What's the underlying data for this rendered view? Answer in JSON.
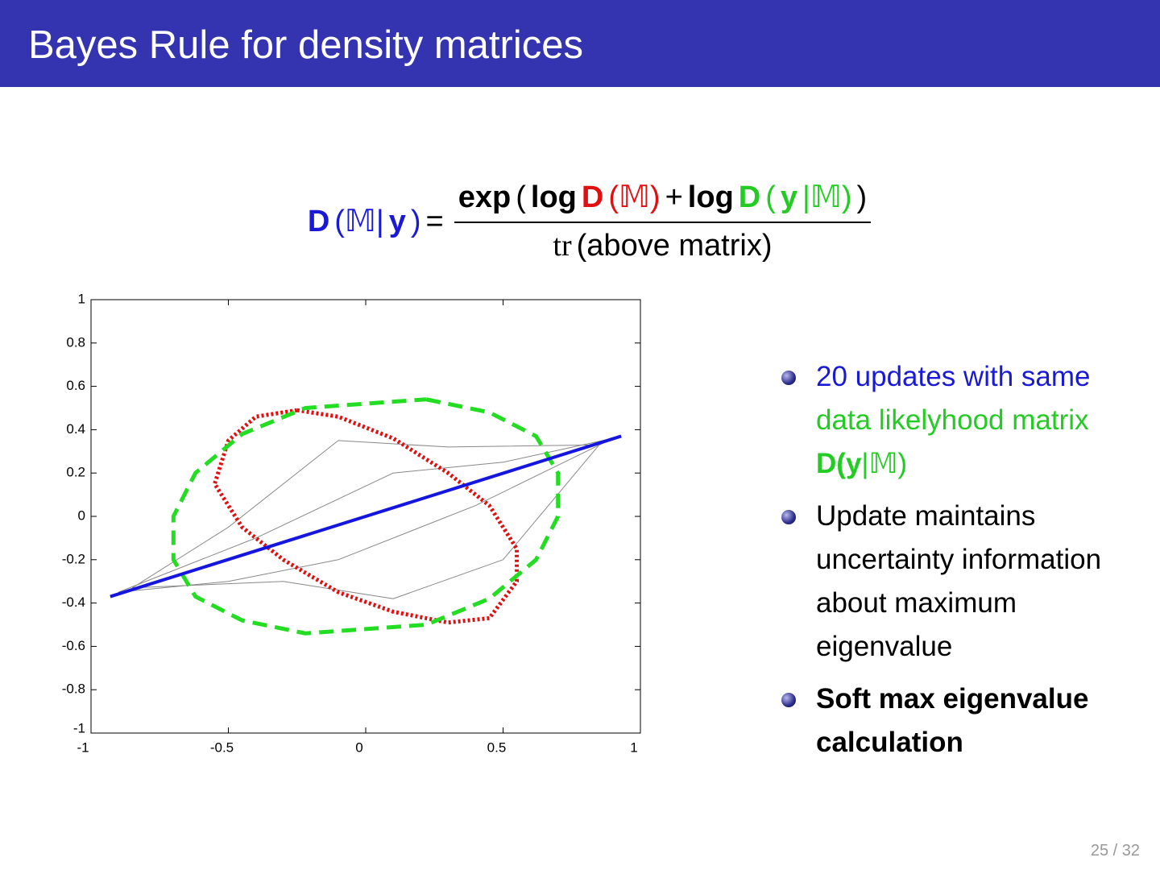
{
  "header": {
    "title": "Bayes Rule for density matrices"
  },
  "formula": {
    "lhs": [
      {
        "text": "D",
        "color": "#1a1ad6",
        "bold": true
      },
      {
        "text": "(𝕄|",
        "color": "#1a1ad6",
        "bold": false
      },
      {
        "text": "y",
        "color": "#1a1ad6",
        "bold": true
      },
      {
        "text": ")",
        "color": "#1a1ad6",
        "bold": false
      },
      {
        "text": "=",
        "color": "#000000",
        "bold": false
      }
    ],
    "numerator": [
      {
        "text": "exp",
        "color": "#000000",
        "bold": true
      },
      {
        "text": "(",
        "color": "#000000",
        "bold": false
      },
      {
        "text": "log",
        "color": "#000000",
        "bold": true
      },
      {
        "text": "D",
        "color": "#e01010",
        "bold": true
      },
      {
        "text": "(𝕄)",
        "color": "#e01010",
        "bold": false
      },
      {
        "text": "+",
        "color": "#000000",
        "bold": false
      },
      {
        "text": "log",
        "color": "#000000",
        "bold": true
      },
      {
        "text": "D",
        "color": "#22cc22",
        "bold": true
      },
      {
        "text": "(",
        "color": "#22cc22",
        "bold": false
      },
      {
        "text": "y",
        "color": "#22cc22",
        "bold": true
      },
      {
        "text": "|𝕄)",
        "color": "#22cc22",
        "bold": false
      },
      {
        "text": ")",
        "color": "#000000",
        "bold": false
      }
    ],
    "denominator": [
      {
        "text": "tr",
        "color": "#000000",
        "bold": false
      },
      {
        "text": "(above matrix)",
        "color": "#000000",
        "bold": false
      }
    ]
  },
  "chart_data": {
    "type": "line",
    "xlim": [
      -1,
      1
    ],
    "ylim": [
      -1,
      1
    ],
    "xticks": [
      -1,
      -0.5,
      0,
      0.5,
      1
    ],
    "yticks": [
      -1,
      -0.8,
      -0.6,
      -0.4,
      -0.2,
      0,
      0.2,
      0.4,
      0.6,
      0.8,
      1
    ],
    "series": [
      {
        "color": "#888888",
        "style": "solid",
        "x": [
          -0.85,
          -0.5,
          -0.1,
          0.3,
          0.85,
          0.5,
          0.1,
          -0.3,
          -0.85
        ],
        "values": [
          -0.33,
          -0.05,
          0.35,
          0.32,
          0.33,
          -0.2,
          -0.38,
          -0.3,
          -0.33
        ]
      },
      {
        "color": "#888888",
        "style": "solid",
        "x": [
          -0.9,
          -0.4,
          0.1,
          0.5,
          0.9,
          0.4,
          -0.1,
          -0.5,
          -0.9
        ],
        "values": [
          -0.35,
          -0.1,
          0.2,
          0.25,
          0.36,
          0.05,
          -0.2,
          -0.3,
          -0.35
        ]
      },
      {
        "color": "#e01010",
        "style": "dotted",
        "x": [
          -0.25,
          -0.1,
          0.1,
          0.3,
          0.45,
          0.55,
          0.55,
          0.45,
          0.3,
          0.1,
          -0.1,
          -0.3,
          -0.45,
          -0.55,
          -0.5,
          -0.4,
          -0.25
        ],
        "values": [
          0.49,
          0.46,
          0.36,
          0.2,
          0.05,
          -0.15,
          -0.3,
          -0.47,
          -0.49,
          -0.44,
          -0.35,
          -0.2,
          -0.05,
          0.15,
          0.35,
          0.46,
          0.49
        ]
      },
      {
        "color": "#22dd22",
        "style": "dashed",
        "x": [
          0.22,
          0.45,
          0.62,
          0.7,
          0.7,
          0.62,
          0.45,
          0.22,
          -0.22,
          -0.45,
          -0.62,
          -0.7,
          -0.7,
          -0.62,
          -0.45,
          -0.22,
          0.22
        ],
        "values": [
          0.54,
          0.48,
          0.37,
          0.2,
          0,
          -0.2,
          -0.38,
          -0.5,
          -0.54,
          -0.48,
          -0.37,
          -0.2,
          0,
          0.2,
          0.38,
          0.5,
          0.54
        ]
      },
      {
        "color": "#1515e0",
        "style": "solid-thick",
        "x": [
          -0.93,
          0.93
        ],
        "values": [
          -0.37,
          0.37
        ]
      }
    ]
  },
  "bullets": [
    {
      "lines": [
        [
          {
            "text": "20 updates with same",
            "color": "#1a1ad6",
            "bold": false
          }
        ],
        [
          {
            "text": "data likelyhood matrix",
            "color": "#22cc22",
            "bold": false
          }
        ],
        [
          {
            "text": "D(",
            "color": "#22cc22",
            "bold": true
          },
          {
            "text": "y",
            "color": "#22cc22",
            "bold": true
          },
          {
            "text": "|𝕄)",
            "color": "#22cc22",
            "bold": false
          }
        ]
      ]
    },
    {
      "lines": [
        [
          {
            "text": "Update maintains",
            "color": "#000000",
            "bold": false
          }
        ],
        [
          {
            "text": "uncertainty information",
            "color": "#000000",
            "bold": false
          }
        ],
        [
          {
            "text": "about maximum",
            "color": "#000000",
            "bold": false
          }
        ],
        [
          {
            "text": "eigenvalue",
            "color": "#000000",
            "bold": false
          }
        ]
      ]
    },
    {
      "lines": [
        [
          {
            "text": "Soft max eigenvalue",
            "color": "#000000",
            "bold": true
          }
        ],
        [
          {
            "text": "calculation",
            "color": "#000000",
            "bold": true
          }
        ]
      ]
    }
  ],
  "footer": {
    "page": "25 / 32"
  }
}
